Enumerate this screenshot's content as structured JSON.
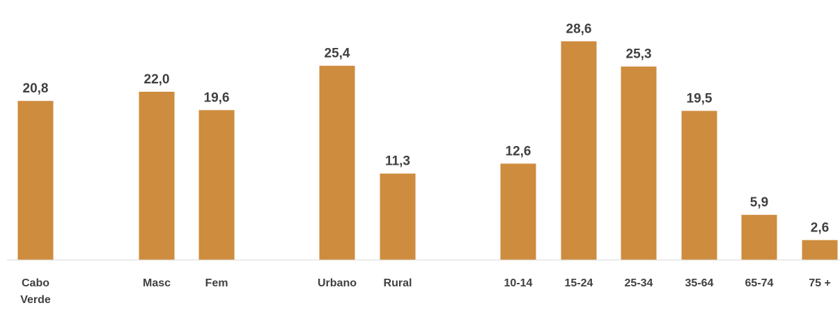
{
  "chart_data": {
    "type": "bar",
    "title": "",
    "xlabel": "",
    "ylabel": "",
    "categories": [
      {
        "label": [
          "Cabo",
          "Verde"
        ],
        "value": 20.8,
        "value_label": "20,8"
      },
      {
        "label": [
          "Masc"
        ],
        "value": 22.0,
        "value_label": "22,0"
      },
      {
        "label": [
          "Fem"
        ],
        "value": 19.6,
        "value_label": "19,6"
      },
      {
        "label": [
          "Urbano"
        ],
        "value": 25.4,
        "value_label": "25,4"
      },
      {
        "label": [
          "Rural"
        ],
        "value": 11.3,
        "value_label": "11,3"
      },
      {
        "label": [
          "10-14"
        ],
        "value": 12.6,
        "value_label": "12,6"
      },
      {
        "label": [
          "15-24"
        ],
        "value": 28.6,
        "value_label": "28,6"
      },
      {
        "label": [
          "25-34"
        ],
        "value": 25.3,
        "value_label": "25,3"
      },
      {
        "label": [
          "35-64"
        ],
        "value": 19.5,
        "value_label": "19,5"
      },
      {
        "label": [
          "65-74"
        ],
        "value": 5.9,
        "value_label": "5,9"
      },
      {
        "label": [
          "75 +"
        ],
        "value": 2.6,
        "value_label": "2,6"
      }
    ],
    "bar_color": "#CE8C3E",
    "axis_color": "#D9D9D9",
    "grid": false,
    "legend": "none"
  }
}
